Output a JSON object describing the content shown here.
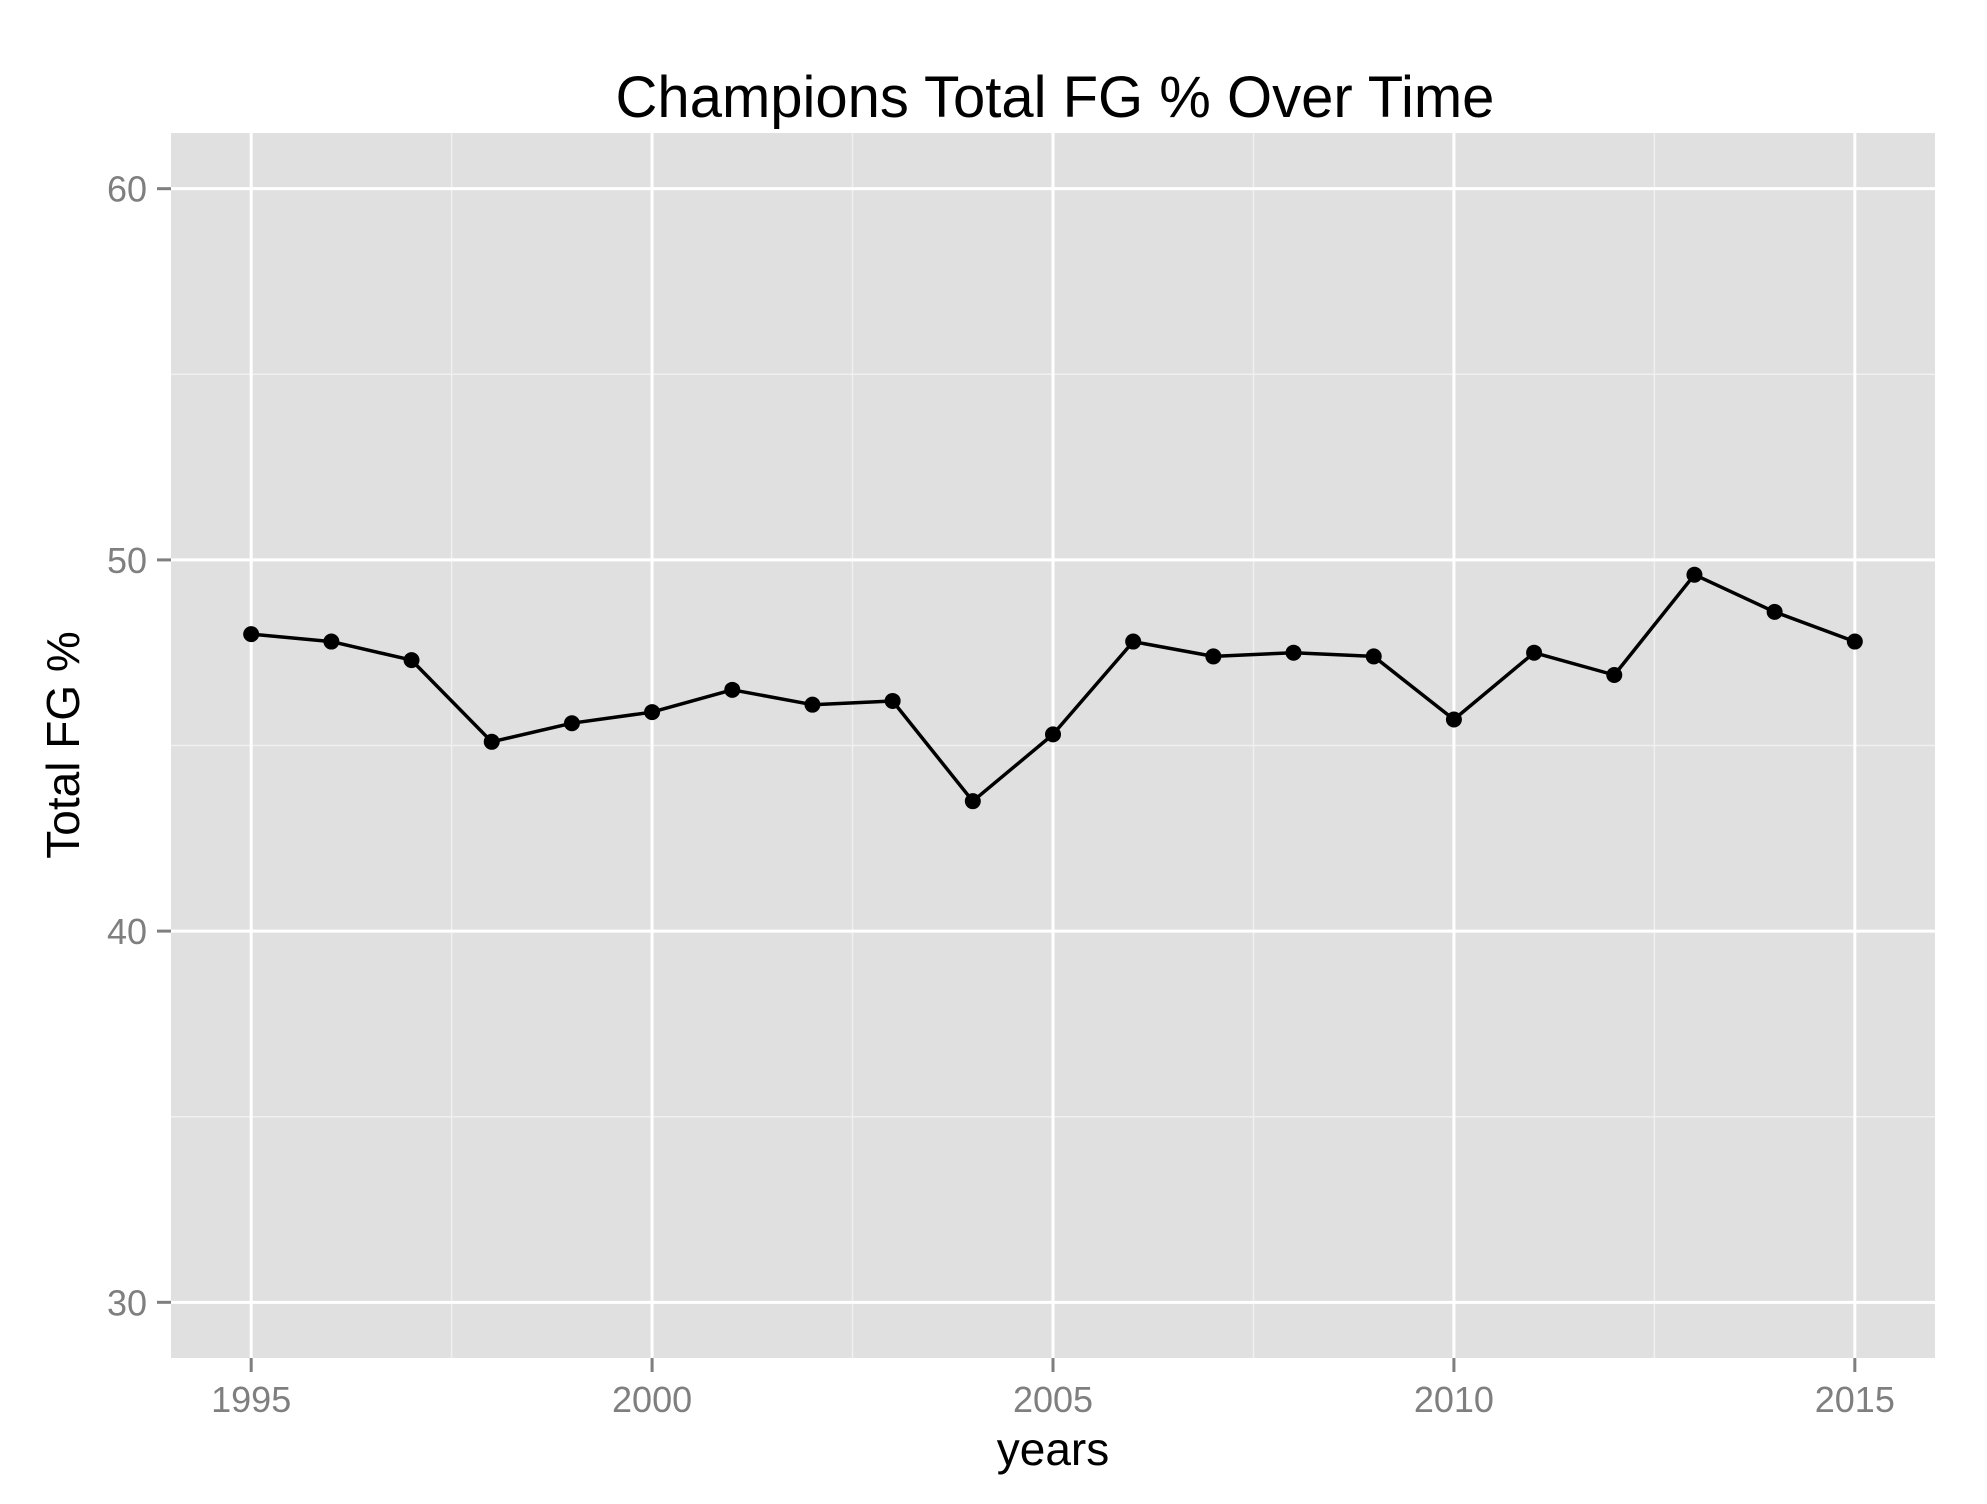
{
  "chart_data": {
    "type": "line",
    "title": "Champions Total FG % Over Time",
    "xlabel": "years",
    "ylabel": "Total FG %",
    "xlim": [
      1994,
      2016
    ],
    "ylim": [
      28.5,
      61.5
    ],
    "x_ticks": [
      1995,
      2000,
      2005,
      2010,
      2015
    ],
    "x_tick_labels": [
      "1995",
      "2000",
      "2005",
      "2010",
      "2015"
    ],
    "x_minor_ticks": [
      1997.5,
      2002.5,
      2007.5,
      2012.5
    ],
    "y_ticks": [
      30,
      40,
      50,
      60
    ],
    "y_tick_labels": [
      "30",
      "40",
      "50",
      "60"
    ],
    "y_minor_ticks": [
      35,
      45,
      55
    ],
    "grid": true,
    "legend": "none",
    "colors": {
      "panel_background": "#e0e0e0",
      "grid_major": "#ffffff",
      "grid_minor": "#f0f0f0",
      "line": "#000000",
      "point": "#000000",
      "tick_label": "#7f7f7f"
    },
    "series": [
      {
        "x": [
          1995,
          1996,
          1997,
          1998,
          1999,
          2000,
          2001,
          2002,
          2003,
          2004,
          2005,
          2006,
          2007,
          2008,
          2009,
          2010,
          2011,
          2012,
          2013,
          2014,
          2015
        ],
        "values": [
          48.0,
          47.8,
          47.3,
          45.1,
          45.6,
          45.9,
          46.5,
          46.1,
          46.2,
          43.5,
          45.3,
          47.8,
          47.4,
          47.5,
          47.4,
          45.7,
          47.5,
          46.9,
          49.6,
          48.6,
          47.8
        ]
      }
    ]
  }
}
